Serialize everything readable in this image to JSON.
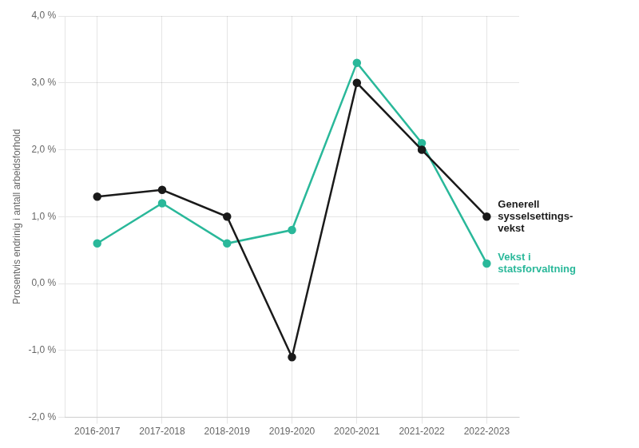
{
  "chart_data": {
    "type": "line",
    "categories": [
      "2016-2017",
      "2017-2018",
      "2018-2019",
      "2019-2020",
      "2020-2021",
      "2021-2022",
      "2022-2023"
    ],
    "series": [
      {
        "name": "Generell\nsysselsettings-\nvekst",
        "color": "#1a1a1a",
        "marker": "circle",
        "values": [
          1.3,
          1.4,
          1.0,
          -1.1,
          3.0,
          2.0,
          1.0
        ]
      },
      {
        "name": "Vekst i\nstatsforvaltning",
        "color": "#2ab89a",
        "marker": "circle",
        "values": [
          0.6,
          1.2,
          0.6,
          0.8,
          3.3,
          2.1,
          0.3
        ]
      }
    ],
    "ylabel": "Prosentvis endrinig i antall arbeidsforhold",
    "ylim": [
      -2.0,
      4.0
    ],
    "yticks": [
      {
        "value": -2.0,
        "label": "-2,0 %"
      },
      {
        "value": -1.0,
        "label": "-1,0 %"
      },
      {
        "value": 0.0,
        "label": "0,0 %"
      },
      {
        "value": 1.0,
        "label": "1,0 %"
      },
      {
        "value": 2.0,
        "label": "2,0 %"
      },
      {
        "value": 3.0,
        "label": "3,0 %"
      },
      {
        "value": 4.0,
        "label": "4,0 %"
      }
    ],
    "grid": true
  }
}
